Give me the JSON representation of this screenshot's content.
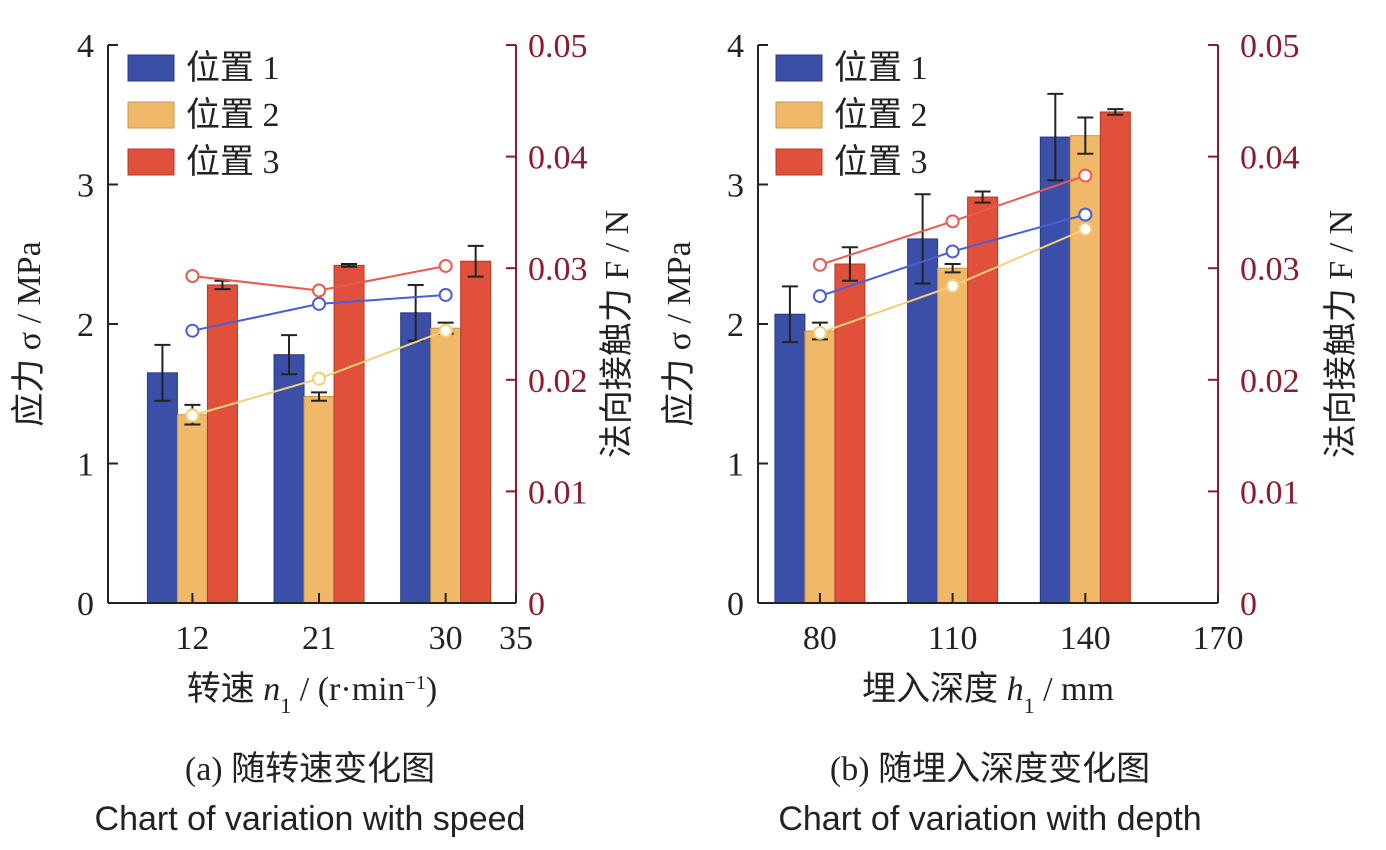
{
  "colors": {
    "pos1": "#3b4fa8",
    "pos2": "#f0b96a",
    "pos3": "#e0503a",
    "line1": "#4a5ed6",
    "line2": "#f1d07a",
    "line3": "#ea5a4e",
    "right_axis": "#8a1c2b",
    "axis": "#222222"
  },
  "chart_data": [
    {
      "type": "bar",
      "panel": "a",
      "caption_zh": "(a) 随转速变化图",
      "caption_en": "Chart of variation with speed",
      "xlabel_pre": "转速 ",
      "xlabel_var": "n",
      "xlabel_sub": "1",
      "xlabel_post": " / (r·min",
      "xlabel_sup": "−1",
      "xlabel_end": ")",
      "ylabel": "应力 σ / MPa",
      "y2label": "法向接触力 F / N",
      "x_ticks": [
        "12",
        "21",
        "30",
        "35"
      ],
      "x_tick_values": [
        12,
        21,
        30,
        35
      ],
      "xlim": [
        6,
        35
      ],
      "ylim": [
        0,
        4
      ],
      "y_ticks": [
        "0",
        "1",
        "2",
        "3",
        "4"
      ],
      "y2lim": [
        0,
        0.05
      ],
      "y2_ticks": [
        "0",
        "0.01",
        "0.02",
        "0.03",
        "0.04",
        "0.05"
      ],
      "categories": [
        12,
        21,
        30
      ],
      "legend": [
        "位置 1",
        "位置 2",
        "位置 3"
      ],
      "bars": [
        {
          "name": "位置 1",
          "values": [
            1.65,
            1.78,
            2.08
          ],
          "errors": [
            0.2,
            0.14,
            0.2
          ]
        },
        {
          "name": "位置 2",
          "values": [
            1.35,
            1.48,
            1.97
          ],
          "errors": [
            0.07,
            0.03,
            0.04
          ]
        },
        {
          "name": "位置 3",
          "values": [
            2.28,
            2.42,
            2.45
          ],
          "errors": [
            0.03,
            0.01,
            0.11
          ]
        }
      ],
      "lines": [
        {
          "name": "位置 1",
          "x": [
            12,
            21,
            30
          ],
          "values": [
            0.0244,
            0.0268,
            0.0276
          ]
        },
        {
          "name": "位置 2",
          "x": [
            12,
            21,
            30
          ],
          "values": [
            0.0168,
            0.0201,
            0.0244
          ]
        },
        {
          "name": "位置 3",
          "x": [
            12,
            21,
            30
          ],
          "values": [
            0.0293,
            0.028,
            0.0302
          ]
        }
      ]
    },
    {
      "type": "bar",
      "panel": "b",
      "caption_zh": "(b) 随埋入深度变化图",
      "caption_en": "Chart of variation with depth",
      "xlabel_pre": "埋入深度 ",
      "xlabel_var": "h",
      "xlabel_sub": "1",
      "xlabel_post": " / mm",
      "xlabel_sup": "",
      "xlabel_end": "",
      "ylabel": "应力 σ / MPa",
      "y2label": "法向接触力 F / N",
      "x_ticks": [
        "80",
        "110",
        "140",
        "170"
      ],
      "x_tick_values": [
        80,
        110,
        140,
        170
      ],
      "xlim": [
        66,
        170
      ],
      "ylim": [
        0,
        4
      ],
      "y_ticks": [
        "0",
        "1",
        "2",
        "3",
        "4"
      ],
      "y2lim": [
        0,
        0.05
      ],
      "y2_ticks": [
        "0",
        "0.01",
        "0.02",
        "0.03",
        "0.04",
        "0.05"
      ],
      "categories": [
        80,
        110,
        140
      ],
      "legend": [
        "位置 1",
        "位置 2",
        "位置 3"
      ],
      "bars": [
        {
          "name": "位置 1",
          "values": [
            2.07,
            2.61,
            3.34
          ],
          "errors": [
            0.2,
            0.32,
            0.31
          ]
        },
        {
          "name": "位置 2",
          "values": [
            1.95,
            2.4,
            3.35
          ],
          "errors": [
            0.06,
            0.03,
            0.13
          ]
        },
        {
          "name": "位置 3",
          "values": [
            2.43,
            2.91,
            3.52
          ],
          "errors": [
            0.12,
            0.04,
            0.02
          ]
        }
      ],
      "lines": [
        {
          "name": "位置 1",
          "x": [
            80,
            110,
            140
          ],
          "values": [
            0.0275,
            0.0315,
            0.0348
          ]
        },
        {
          "name": "位置 2",
          "x": [
            80,
            110,
            140
          ],
          "values": [
            0.0242,
            0.0284,
            0.0335
          ]
        },
        {
          "name": "位置 3",
          "x": [
            80,
            110,
            140
          ],
          "values": [
            0.0303,
            0.0342,
            0.0383
          ]
        }
      ]
    }
  ]
}
